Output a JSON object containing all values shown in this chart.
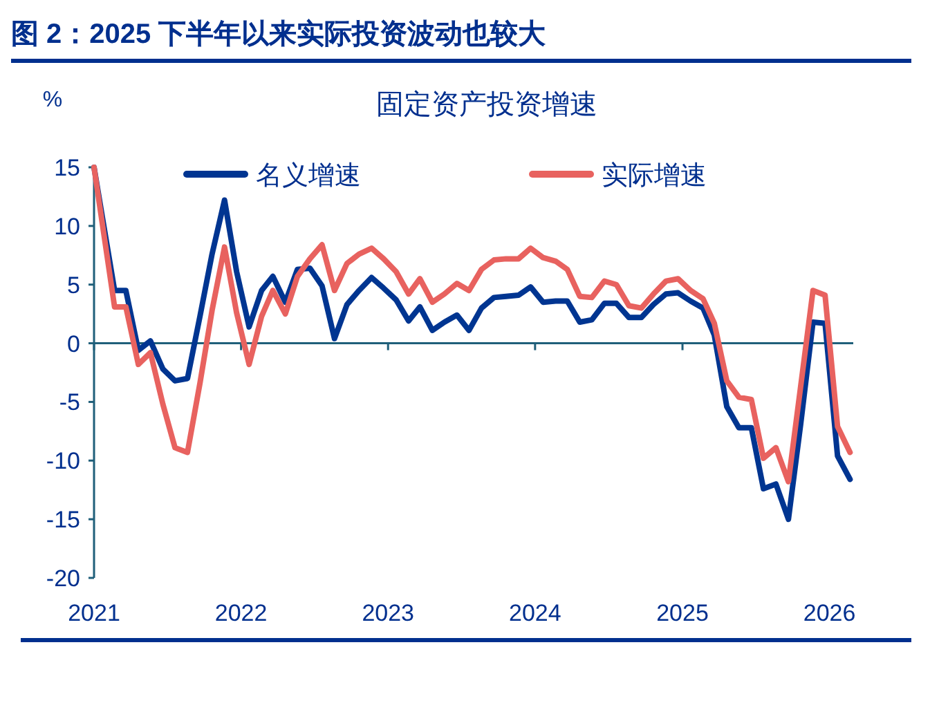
{
  "chart_data": {
    "type": "line",
    "title": "图 2：2025 下半年以来实际投资波动也较大",
    "subtitle": "固定资产投资增速",
    "ylabel": "%",
    "x": [
      "2021-01-01",
      "2021-02-21",
      "2021-03-21",
      "2021-04-21",
      "2021-05-21",
      "2021-06-21",
      "2021-07-21",
      "2021-08-21",
      "2021-09-21",
      "2021-10-21",
      "2021-11-21",
      "2021-12-21",
      "2022-01-21",
      "2022-02-21",
      "2022-03-21",
      "2022-04-21",
      "2022-05-21",
      "2022-06-21",
      "2022-07-21",
      "2022-08-21",
      "2022-09-21",
      "2022-10-21",
      "2022-11-21",
      "2022-12-21",
      "2023-01-21",
      "2023-02-21",
      "2023-03-21",
      "2023-04-21",
      "2023-05-21",
      "2023-06-21",
      "2023-07-21",
      "2023-08-21",
      "2023-09-21",
      "2023-10-21",
      "2023-11-21",
      "2023-12-21",
      "2024-01-21",
      "2024-02-21",
      "2024-03-21",
      "2024-04-21",
      "2024-05-21",
      "2024-06-21",
      "2024-07-21",
      "2024-08-21",
      "2024-09-21",
      "2024-10-21",
      "2024-11-21",
      "2024-12-21",
      "2025-01-21",
      "2025-02-21",
      "2025-03-21",
      "2025-04-21",
      "2025-05-21",
      "2025-06-21",
      "2025-07-21",
      "2025-08-21",
      "2025-09-21",
      "2025-10-21",
      "2025-11-21",
      "2025-12-21",
      "2026-01-21",
      "2026-02-21"
    ],
    "series": [
      {
        "name": "名义增速",
        "color": "#003591",
        "values": [
          15,
          4.5,
          4.5,
          -0.6,
          0.2,
          -2.2,
          -3.2,
          -3.0,
          2.3,
          7.6,
          12.2,
          6.1,
          1.4,
          4.5,
          5.7,
          3.5,
          6.3,
          6.4,
          4.9,
          0.4,
          3.3,
          4.5,
          5.6,
          4.7,
          3.7,
          1.9,
          3.1,
          1.1,
          1.8,
          2.4,
          1.1,
          3.0,
          3.9,
          4.0,
          4.1,
          4.8,
          3.5,
          3.6,
          3.6,
          1.8,
          2.0,
          3.4,
          3.4,
          2.2,
          2.2,
          3.3,
          4.2,
          4.3,
          3.6,
          3.0,
          0.7,
          -5.4,
          -7.2,
          -7.2,
          -12.4,
          -12.0,
          -15.0,
          -7.0,
          1.8,
          1.7,
          -9.6,
          -11.6
        ]
      },
      {
        "name": "实际增速",
        "color": "#e8625f",
        "values": [
          15,
          3.1,
          3.1,
          -1.8,
          -0.8,
          -5.2,
          -8.9,
          -9.3,
          -3.4,
          2.8,
          8.2,
          2.6,
          -1.8,
          2.3,
          4.5,
          2.5,
          5.7,
          7.2,
          8.4,
          4.5,
          6.8,
          7.6,
          8.1,
          7.2,
          6.1,
          4.2,
          5.5,
          3.5,
          4.2,
          5.1,
          4.5,
          6.3,
          7.1,
          7.2,
          7.2,
          8.1,
          7.3,
          7.0,
          6.3,
          4.0,
          3.9,
          5.3,
          5.0,
          3.2,
          3.0,
          4.2,
          5.3,
          5.5,
          4.5,
          3.8,
          1.7,
          -3.2,
          -4.6,
          -4.8,
          -9.8,
          -8.9,
          -11.8,
          -3.8,
          4.5,
          4.1,
          -7.1,
          -9.3
        ]
      }
    ],
    "xlim": [
      "2021-01-01",
      "2026-03-01"
    ],
    "xticks": [
      {
        "value": "2021-01-01",
        "label": "2021"
      },
      {
        "value": "2022-01-01",
        "label": "2022"
      },
      {
        "value": "2023-01-01",
        "label": "2023"
      },
      {
        "value": "2024-01-01",
        "label": "2024"
      },
      {
        "value": "2025-01-01",
        "label": "2025"
      },
      {
        "value": "2026-01-01",
        "label": "2026"
      }
    ],
    "ylim": [
      -20,
      15
    ],
    "yticks": [
      -20,
      -15,
      -10,
      -5,
      0,
      5,
      10,
      15
    ],
    "ref_lines": [
      {
        "axis": "y",
        "value": 0,
        "color": "#1f5f7a"
      }
    ],
    "legend": "top"
  }
}
